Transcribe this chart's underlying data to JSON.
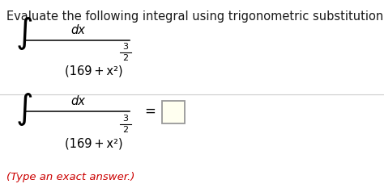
{
  "background_color": "#ffffff",
  "title_text": "Evaluate the following integral using trigonometric substitution.",
  "title_fontsize": 10.5,
  "title_color": "#1a1a1a",
  "integral_symbol": "∫",
  "numerator": "dx",
  "base_expr": "(169 + x²)",
  "exponent_num": "3",
  "exponent_den": "2",
  "equals": "=",
  "hint_text": "(Type an exact answer.)",
  "hint_color": "#cc0000",
  "hint_fontsize": 9.5,
  "fig_width": 4.74,
  "fig_height": 2.33,
  "dpi": 100
}
